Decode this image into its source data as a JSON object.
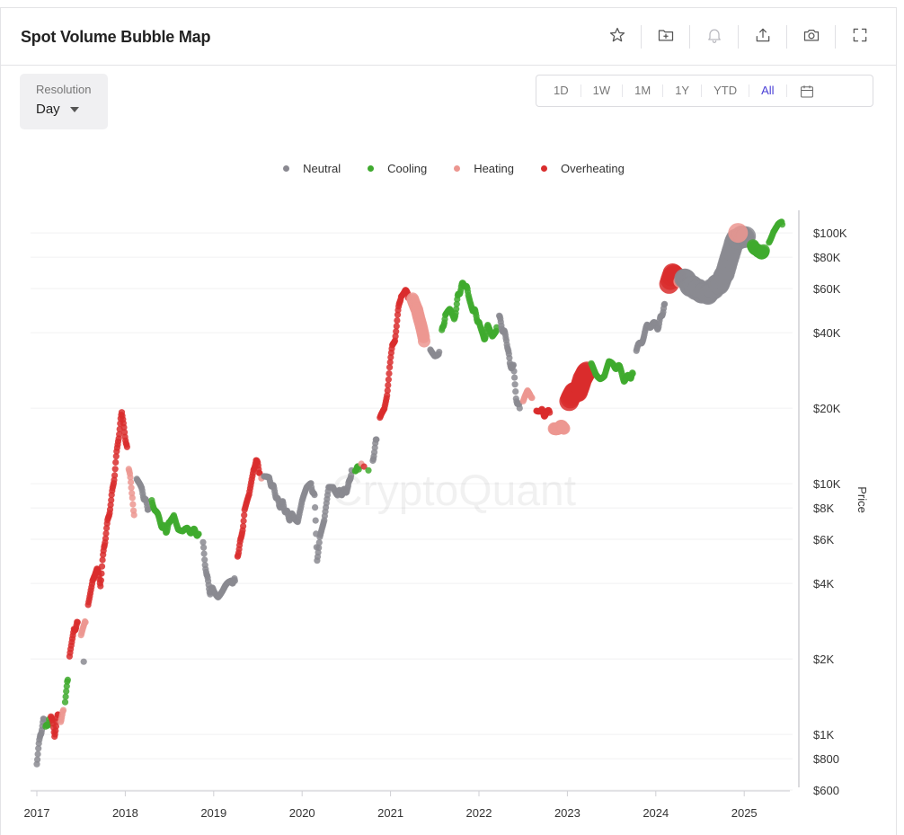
{
  "header": {
    "title": "Spot Volume Bubble Map"
  },
  "toolbar": [
    {
      "name": "star-icon"
    },
    {
      "name": "folder-add-icon"
    },
    {
      "name": "bell-icon"
    },
    {
      "name": "share-icon"
    },
    {
      "name": "camera-icon"
    },
    {
      "name": "fullscreen-icon"
    }
  ],
  "resolution": {
    "label": "Resolution",
    "value": "Day"
  },
  "ranges": [
    "1D",
    "1W",
    "1M",
    "1Y",
    "YTD",
    "All"
  ],
  "active_range": "All",
  "watermark": "CryptoQuant",
  "colors": {
    "Neutral": "#8a8991",
    "Cooling": "#3faa2e",
    "Heating": "#ec9690",
    "Overheating": "#d92d2d",
    "accent": "#4a3fd6"
  },
  "chart_data": {
    "type": "scatter",
    "title": "Spot Volume Bubble Map",
    "ylabel": "Price",
    "yscale": "log",
    "ylim": [
      600,
      120000
    ],
    "xlim": [
      2016.9,
      2025.52
    ],
    "x_ticks": [
      2017,
      2018,
      2019,
      2020,
      2021,
      2022,
      2023,
      2024,
      2025
    ],
    "x_tick_labels": [
      "2017",
      "2018",
      "2019",
      "2020",
      "2021",
      "2022",
      "2023",
      "2024",
      "2025"
    ],
    "y_ticks": [
      600,
      800,
      1000,
      2000,
      4000,
      6000,
      8000,
      10000,
      20000,
      40000,
      60000,
      80000,
      100000
    ],
    "y_tick_labels": [
      "$600",
      "$800",
      "$1K",
      "$2K",
      "$4K",
      "$6K",
      "$8K",
      "$10K",
      "$20K",
      "$40K",
      "$60K",
      "$80K",
      "$100K"
    ],
    "legend": [
      "Neutral",
      "Cooling",
      "Heating",
      "Overheating"
    ],
    "legend_position": "top-center",
    "grid": true,
    "segments": [
      {
        "state": "Neutral",
        "size": 1,
        "points": [
          [
            2017.0,
            780
          ],
          [
            2017.04,
            1000
          ],
          [
            2017.08,
            1150
          ]
        ]
      },
      {
        "state": "Cooling",
        "size": 1,
        "points": [
          [
            2017.1,
            1050
          ],
          [
            2017.14,
            1150
          ]
        ]
      },
      {
        "state": "Overheating",
        "size": 1,
        "points": [
          [
            2017.16,
            1200
          ],
          [
            2017.2,
            1000
          ],
          [
            2017.24,
            1200
          ]
        ]
      },
      {
        "state": "Heating",
        "size": 1,
        "points": [
          [
            2017.27,
            1150
          ],
          [
            2017.3,
            1250
          ]
        ]
      },
      {
        "state": "Cooling",
        "size": 1,
        "points": [
          [
            2017.32,
            1350
          ],
          [
            2017.35,
            1650
          ]
        ]
      },
      {
        "state": "Overheating",
        "size": 1,
        "points": [
          [
            2017.37,
            2000
          ],
          [
            2017.42,
            2600
          ],
          [
            2017.46,
            2800
          ]
        ]
      },
      {
        "state": "Heating",
        "size": 1,
        "points": [
          [
            2017.5,
            2500
          ],
          [
            2017.55,
            2800
          ]
        ]
      },
      {
        "state": "Neutral",
        "size": 1,
        "points": [
          [
            2017.53,
            1950
          ]
        ]
      },
      {
        "state": "Overheating",
        "size": 1,
        "points": [
          [
            2017.58,
            3300
          ],
          [
            2017.63,
            4200
          ],
          [
            2017.68,
            4600
          ],
          [
            2017.72,
            4000
          ],
          [
            2017.76,
            5600
          ],
          [
            2017.8,
            7000
          ],
          [
            2017.84,
            8500
          ],
          [
            2017.88,
            11000
          ],
          [
            2017.92,
            15000
          ],
          [
            2017.96,
            19000
          ],
          [
            2017.98,
            17000
          ],
          [
            2018.02,
            14000
          ]
        ]
      },
      {
        "state": "Heating",
        "size": 1,
        "points": [
          [
            2018.04,
            11500
          ],
          [
            2018.08,
            9000
          ],
          [
            2018.1,
            7500
          ]
        ]
      },
      {
        "state": "Neutral",
        "size": 1,
        "points": [
          [
            2018.13,
            10500
          ],
          [
            2018.18,
            9500
          ],
          [
            2018.22,
            8700
          ],
          [
            2018.26,
            7900
          ]
        ]
      },
      {
        "state": "Cooling",
        "size": 1,
        "points": [
          [
            2018.3,
            8600
          ],
          [
            2018.36,
            7500
          ],
          [
            2018.42,
            6800
          ],
          [
            2018.46,
            6500
          ],
          [
            2018.5,
            6900
          ],
          [
            2018.55,
            7600
          ],
          [
            2018.6,
            6700
          ],
          [
            2018.65,
            6400
          ],
          [
            2018.7,
            6500
          ],
          [
            2018.76,
            6500
          ],
          [
            2018.83,
            6300
          ]
        ]
      },
      {
        "state": "Neutral",
        "size": 1,
        "points": [
          [
            2018.88,
            5700
          ],
          [
            2018.92,
            4300
          ],
          [
            2018.96,
            3700
          ],
          [
            2019.0,
            3800
          ],
          [
            2019.05,
            3600
          ],
          [
            2019.1,
            3700
          ],
          [
            2019.15,
            3900
          ],
          [
            2019.2,
            4100
          ],
          [
            2019.24,
            4100
          ]
        ]
      },
      {
        "state": "Overheating",
        "size": 1,
        "points": [
          [
            2019.27,
            5200
          ],
          [
            2019.31,
            6000
          ],
          [
            2019.35,
            7700
          ],
          [
            2019.4,
            8900
          ],
          [
            2019.45,
            11500
          ],
          [
            2019.48,
            12500
          ],
          [
            2019.52,
            11000
          ]
        ]
      },
      {
        "state": "Heating",
        "size": 1,
        "points": [
          [
            2019.54,
            10500
          ]
        ]
      },
      {
        "state": "Neutral",
        "size": 1,
        "points": [
          [
            2019.57,
            10800
          ],
          [
            2019.62,
            10400
          ],
          [
            2019.66,
            9900
          ],
          [
            2019.7,
            9100
          ],
          [
            2019.74,
            8200
          ],
          [
            2019.78,
            8300
          ],
          [
            2019.82,
            7700
          ],
          [
            2019.86,
            7300
          ],
          [
            2019.9,
            7500
          ],
          [
            2019.95,
            7200
          ],
          [
            2020.0,
            8500
          ],
          [
            2020.05,
            9400
          ],
          [
            2020.1,
            10000
          ],
          [
            2020.14,
            8800
          ],
          [
            2020.17,
            5000
          ],
          [
            2020.2,
            6200
          ],
          [
            2020.25,
            7000
          ],
          [
            2020.3,
            9500
          ],
          [
            2020.35,
            9800
          ],
          [
            2020.4,
            9200
          ],
          [
            2020.44,
            9200
          ],
          [
            2020.48,
            9300
          ],
          [
            2020.52,
            9600
          ],
          [
            2020.56,
            11300
          ]
        ]
      },
      {
        "state": "Cooling",
        "size": 1,
        "points": [
          [
            2020.6,
            11500
          ],
          [
            2020.64,
            11400
          ]
        ]
      },
      {
        "state": "Heating",
        "size": 1,
        "points": [
          [
            2020.67,
            12000
          ]
        ]
      },
      {
        "state": "Overheating",
        "size": 1,
        "points": [
          [
            2020.7,
            11700
          ]
        ]
      },
      {
        "state": "Cooling",
        "size": 1,
        "points": [
          [
            2020.75,
            11300
          ]
        ]
      },
      {
        "state": "Neutral",
        "size": 1,
        "points": [
          [
            2020.8,
            12500
          ],
          [
            2020.84,
            15000
          ]
        ]
      },
      {
        "state": "Overheating",
        "size": 1,
        "points": [
          [
            2020.88,
            18000
          ],
          [
            2020.93,
            19500
          ],
          [
            2020.96,
            23000
          ],
          [
            2020.99,
            29000
          ],
          [
            2021.02,
            35000
          ],
          [
            2021.05,
            38000
          ],
          [
            2021.08,
            47000
          ],
          [
            2021.12,
            57000
          ],
          [
            2021.17,
            59000
          ],
          [
            2021.2,
            55000
          ]
        ]
      },
      {
        "state": "Heating",
        "size": 2,
        "points": [
          [
            2021.25,
            55000
          ],
          [
            2021.3,
            50000
          ],
          [
            2021.38,
            37000
          ]
        ]
      },
      {
        "state": "Neutral",
        "size": 1,
        "points": [
          [
            2021.45,
            34000
          ],
          [
            2021.5,
            33000
          ],
          [
            2021.55,
            33500
          ]
        ]
      },
      {
        "state": "Cooling",
        "size": 1,
        "points": [
          [
            2021.58,
            40000
          ],
          [
            2021.62,
            47000
          ],
          [
            2021.67,
            48500
          ],
          [
            2021.72,
            45000
          ],
          [
            2021.76,
            55000
          ],
          [
            2021.8,
            61000
          ],
          [
            2021.84,
            63000
          ],
          [
            2021.88,
            57000
          ],
          [
            2021.93,
            50000
          ],
          [
            2021.97,
            47000
          ],
          [
            2022.01,
            42000
          ],
          [
            2022.06,
            38000
          ],
          [
            2022.1,
            42000
          ],
          [
            2022.15,
            39000
          ],
          [
            2022.2,
            42000
          ]
        ]
      },
      {
        "state": "Neutral",
        "size": 1,
        "points": [
          [
            2022.23,
            46000
          ],
          [
            2022.27,
            41000
          ],
          [
            2022.31,
            38000
          ],
          [
            2022.35,
            30000
          ],
          [
            2022.39,
            29000
          ],
          [
            2022.42,
            22000
          ],
          [
            2022.46,
            20000
          ]
        ]
      },
      {
        "state": "Heating",
        "size": 1,
        "points": [
          [
            2022.5,
            21000
          ],
          [
            2022.55,
            23000
          ],
          [
            2022.6,
            22000
          ]
        ]
      },
      {
        "state": "Overheating",
        "size": 1,
        "points": [
          [
            2022.65,
            20000
          ],
          [
            2022.7,
            19500
          ],
          [
            2022.74,
            19000
          ],
          [
            2022.8,
            19200
          ]
        ]
      },
      {
        "state": "Heating",
        "size": 2,
        "points": [
          [
            2022.85,
            16800
          ],
          [
            2022.9,
            16800
          ],
          [
            2022.96,
            16600
          ]
        ]
      },
      {
        "state": "Overheating",
        "size": 3,
        "points": [
          [
            2023.02,
            21000
          ],
          [
            2023.07,
            23000
          ],
          [
            2023.12,
            23500
          ],
          [
            2023.17,
            26500
          ],
          [
            2023.22,
            28000
          ]
        ]
      },
      {
        "state": "Cooling",
        "size": 1,
        "points": [
          [
            2023.27,
            29500
          ],
          [
            2023.32,
            27500
          ],
          [
            2023.37,
            26800
          ],
          [
            2023.42,
            27000
          ],
          [
            2023.47,
            30000
          ],
          [
            2023.52,
            29500
          ],
          [
            2023.58,
            29300
          ],
          [
            2023.64,
            26200
          ],
          [
            2023.7,
            26500
          ],
          [
            2023.74,
            27500
          ]
        ]
      },
      {
        "state": "Neutral",
        "size": 1,
        "points": [
          [
            2023.78,
            34000
          ],
          [
            2023.84,
            37000
          ],
          [
            2023.9,
            42000
          ],
          [
            2023.96,
            43500
          ],
          [
            2024.02,
            42000
          ],
          [
            2024.06,
            46000
          ],
          [
            2024.1,
            52000
          ]
        ]
      },
      {
        "state": "Overheating",
        "size": 3,
        "points": [
          [
            2024.15,
            62000
          ],
          [
            2024.19,
            68000
          ],
          [
            2024.23,
            67000
          ]
        ]
      },
      {
        "state": "Heating",
        "size": 2,
        "points": [
          [
            2024.27,
            64000
          ]
        ]
      },
      {
        "state": "Neutral",
        "size": 3,
        "points": [
          [
            2024.32,
            66000
          ],
          [
            2024.38,
            62000
          ],
          [
            2024.45,
            60000
          ],
          [
            2024.52,
            58000
          ],
          [
            2024.58,
            57000
          ],
          [
            2024.65,
            60000
          ],
          [
            2024.72,
            63000
          ],
          [
            2024.78,
            68000
          ],
          [
            2024.83,
            80000
          ],
          [
            2024.88,
            92000
          ],
          [
            2024.95,
            96000
          ],
          [
            2025.02,
            97000
          ]
        ]
      },
      {
        "state": "Heating",
        "size": 3,
        "points": [
          [
            2024.93,
            100000
          ]
        ]
      },
      {
        "state": "Cooling",
        "size": 2,
        "points": [
          [
            2025.1,
            90000
          ],
          [
            2025.16,
            83000
          ],
          [
            2025.22,
            85000
          ]
        ]
      },
      {
        "state": "Cooling",
        "size": 1,
        "points": [
          [
            2025.28,
            93000
          ],
          [
            2025.33,
            103000
          ],
          [
            2025.38,
            107000
          ],
          [
            2025.43,
            108000
          ]
        ]
      }
    ]
  }
}
